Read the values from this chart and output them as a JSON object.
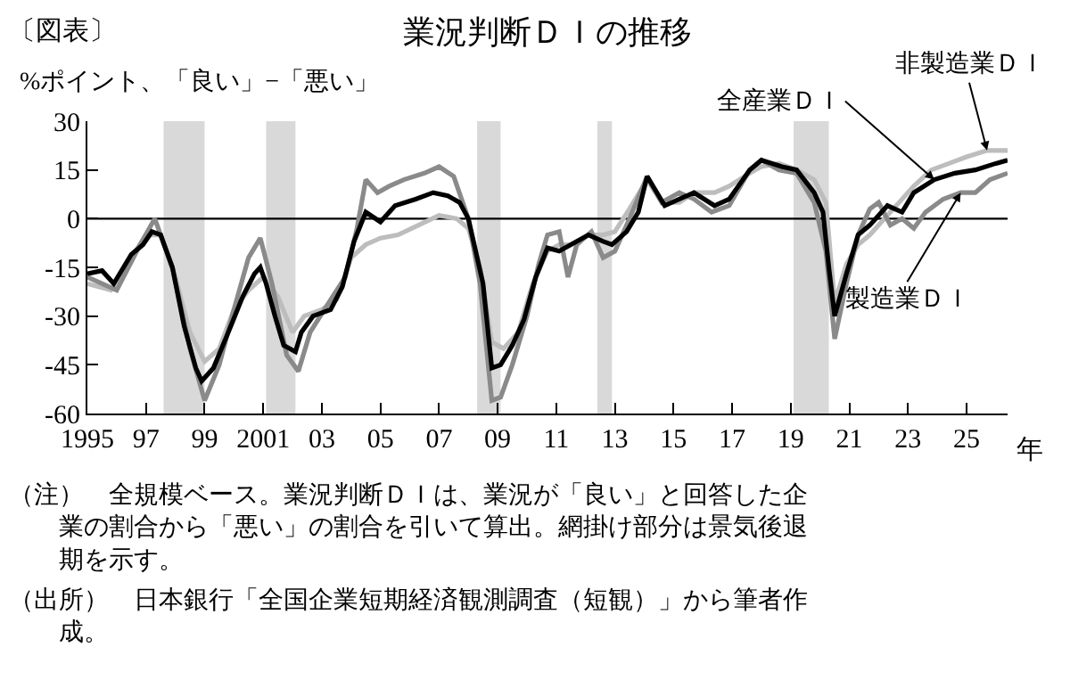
{
  "chart_data": {
    "type": "line",
    "title": "業況判断ＤＩの推移",
    "ylabel": "%ポイント、「良い」−「悪い」",
    "xlabel": "年",
    "xlim": [
      1995,
      2026.4
    ],
    "ylim": [
      -60,
      30
    ],
    "yticks": [
      -60,
      -45,
      -30,
      -15,
      0,
      15,
      30
    ],
    "xticks": [
      {
        "value": 1995,
        "label": "1995"
      },
      {
        "value": 1997,
        "label": "97"
      },
      {
        "value": 1999,
        "label": "99"
      },
      {
        "value": 2001,
        "label": "2001"
      },
      {
        "value": 2003,
        "label": "03"
      },
      {
        "value": 2005,
        "label": "05"
      },
      {
        "value": 2007,
        "label": "07"
      },
      {
        "value": 2009,
        "label": "09"
      },
      {
        "value": 2011,
        "label": "11"
      },
      {
        "value": 2013,
        "label": "13"
      },
      {
        "value": 2015,
        "label": "15"
      },
      {
        "value": 2017,
        "label": "17"
      },
      {
        "value": 2019,
        "label": "19"
      },
      {
        "value": 2021,
        "label": "21"
      },
      {
        "value": 2023,
        "label": "23"
      },
      {
        "value": 2025,
        "label": "25"
      }
    ],
    "grid": false,
    "marker": "none",
    "line_style": "solid",
    "bands": [
      {
        "axis": "x",
        "from": 1997.6,
        "to": 1999.0,
        "color": "#d9d9d9"
      },
      {
        "axis": "x",
        "from": 2001.1,
        "to": 2002.1,
        "color": "#d9d9d9"
      },
      {
        "axis": "x",
        "from": 2008.3,
        "to": 2009.1,
        "color": "#d9d9d9"
      },
      {
        "axis": "x",
        "from": 2012.4,
        "to": 2012.9,
        "color": "#d9d9d9"
      },
      {
        "axis": "x",
        "from": 2019.1,
        "to": 2020.3,
        "color": "#d9d9d9"
      }
    ],
    "ref_lines": [
      {
        "axis": "y",
        "value": 0,
        "color": "#000000"
      }
    ],
    "series": [
      {
        "color": "#bdbdbd",
        "x": [
          1995.0,
          1995.8,
          1996.5,
          1997.0,
          1997.5,
          1998.0,
          1998.5,
          1999.0,
          1999.5,
          2000.0,
          2000.5,
          2001.0,
          2001.5,
          2002.0,
          2002.4,
          2003.0,
          2003.5,
          2004.0,
          2004.5,
          2005.0,
          2005.6,
          2006.3,
          2007.0,
          2007.6,
          2008.0,
          2008.4,
          2008.8,
          2009.2,
          2009.7,
          2010.2,
          2010.7,
          2011.1,
          2011.5,
          2012.1,
          2012.6,
          2013.0,
          2013.5,
          2014.1,
          2014.6,
          2015.2,
          2015.7,
          2016.4,
          2016.9,
          2017.6,
          2018.0,
          2018.6,
          2019.2,
          2019.8,
          2020.2,
          2020.5,
          2020.9,
          2021.3,
          2021.7,
          2022.2,
          2022.7,
          2023.2,
          2023.8,
          2024.4,
          2025.0,
          2025.7,
          2026.4
        ],
        "values": [
          -20,
          -22,
          -12,
          -5,
          -5,
          -18,
          -35,
          -44,
          -40,
          -28,
          -22,
          -18,
          -24,
          -35,
          -30,
          -28,
          -25,
          -12,
          -8,
          -6,
          -5,
          -2,
          1,
          0,
          -3,
          -15,
          -38,
          -40,
          -35,
          -20,
          -10,
          -8,
          -8,
          -5,
          -5,
          -4,
          3,
          12,
          5,
          5,
          8,
          8,
          10,
          14,
          16,
          17,
          15,
          12,
          5,
          -26,
          -14,
          -8,
          -5,
          0,
          5,
          10,
          15,
          17,
          19,
          21,
          21
        ]
      },
      {
        "color": "#8a8a8a",
        "x": [
          1995.0,
          1996.0,
          1996.8,
          1997.3,
          1997.9,
          1998.5,
          1999.0,
          1999.5,
          2000.0,
          2000.5,
          2000.9,
          2001.3,
          2001.8,
          2002.2,
          2002.6,
          2003.3,
          2003.8,
          2004.2,
          2004.5,
          2004.9,
          2005.3,
          2005.8,
          2006.5,
          2007.0,
          2007.5,
          2008.0,
          2008.4,
          2008.8,
          2009.1,
          2009.5,
          2010.0,
          2010.4,
          2010.7,
          2011.1,
          2011.4,
          2011.7,
          2012.2,
          2012.6,
          2013.0,
          2013.5,
          2014.1,
          2014.6,
          2015.2,
          2015.7,
          2016.3,
          2016.9,
          2017.6,
          2018.0,
          2018.6,
          2019.2,
          2019.8,
          2020.2,
          2020.5,
          2020.9,
          2021.3,
          2021.7,
          2022.0,
          2022.4,
          2022.8,
          2023.2,
          2023.6,
          2024.2,
          2024.8,
          2025.3,
          2025.8,
          2026.4
        ],
        "values": [
          -18,
          -22,
          -8,
          0,
          -15,
          -40,
          -56,
          -45,
          -28,
          -12,
          -6,
          -20,
          -42,
          -47,
          -35,
          -25,
          -18,
          -3,
          12,
          8,
          10,
          12,
          14,
          16,
          13,
          0,
          -20,
          -56,
          -55,
          -45,
          -30,
          -14,
          -5,
          -4,
          -18,
          -8,
          -4,
          -12,
          -10,
          0,
          13,
          5,
          8,
          6,
          2,
          4,
          15,
          18,
          15,
          14,
          5,
          -10,
          -37,
          -20,
          -5,
          3,
          5,
          -2,
          0,
          -3,
          2,
          6,
          8,
          8,
          12,
          14
        ]
      },
      {
        "color": "#000000",
        "x": [
          1995.0,
          1995.5,
          1995.9,
          1996.5,
          1996.9,
          1997.2,
          1997.5,
          1997.9,
          1998.3,
          1998.7,
          1998.9,
          1999.3,
          1999.9,
          2000.3,
          2000.7,
          2000.9,
          2001.1,
          2001.4,
          2001.7,
          2002.1,
          2002.3,
          2002.7,
          2003.3,
          2003.7,
          2004.1,
          2004.5,
          2005.0,
          2005.5,
          2006.2,
          2006.8,
          2007.3,
          2007.7,
          2008.0,
          2008.5,
          2008.8,
          2009.1,
          2009.5,
          2009.9,
          2010.3,
          2010.7,
          2011.1,
          2011.5,
          2012.1,
          2012.6,
          2012.9,
          2013.4,
          2013.8,
          2014.1,
          2014.7,
          2015.2,
          2015.7,
          2016.4,
          2016.9,
          2017.6,
          2018.0,
          2018.7,
          2019.2,
          2019.8,
          2020.1,
          2020.3,
          2020.5,
          2020.9,
          2021.3,
          2021.7,
          2022.3,
          2022.8,
          2023.2,
          2023.9,
          2024.6,
          2025.3,
          2026.0,
          2026.4
        ],
        "values": [
          -17,
          -16,
          -20,
          -11,
          -8,
          -4,
          -5,
          -15,
          -33,
          -46,
          -50,
          -46,
          -33,
          -24,
          -17,
          -15,
          -20,
          -30,
          -39,
          -41,
          -35,
          -30,
          -28,
          -21,
          -7,
          2,
          -1,
          4,
          6,
          8,
          7,
          5,
          0,
          -20,
          -46,
          -45,
          -39,
          -31,
          -18,
          -9,
          -10,
          -8,
          -5,
          -7,
          -8,
          -4,
          2,
          13,
          4,
          6,
          8,
          4,
          6,
          15,
          18,
          16,
          15,
          8,
          2,
          -15,
          -30,
          -17,
          -5,
          -2,
          4,
          2,
          8,
          12,
          14,
          15,
          17,
          18
        ]
      }
    ],
    "annotations": [
      {
        "text": "全産業ＤＩ",
        "x": 2023.9,
        "y": 12
      },
      {
        "text": "非製造業ＤＩ",
        "x": 2025.7,
        "y": 21
      },
      {
        "text": "製造業ＤＩ",
        "x": 2024.8,
        "y": 8
      },
      "〔図表〕",
      "（注）　全規模ベース。業況判断ＤＩは、業況が「良い」と回答した企業の割合から「悪い」の割合を引いて算出。網掛け部分は景気後退期を示す。",
      "（出所）　日本銀行「全国企業短期経済観測調査（短観）」から筆者作成。"
    ]
  }
}
